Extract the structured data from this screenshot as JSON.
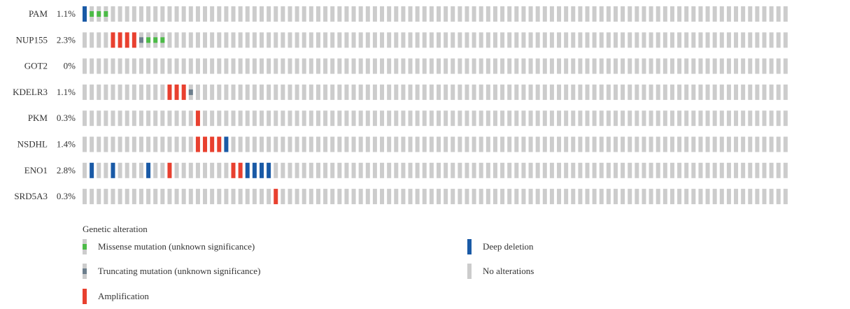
{
  "chart_data": {
    "type": "oncoprint",
    "n_samples": 100,
    "colors": {
      "background": "#cccccc",
      "missense": "#4cbb47",
      "truncating": "#6c7e8c",
      "amplification": "#e8402f",
      "deep_deletion": "#1a5aa6"
    },
    "genes": [
      {
        "gene": "PAM",
        "pct": "1.1%",
        "alterations": [
          {
            "i": 0,
            "type": "deep_deletion"
          },
          {
            "i": 1,
            "type": "missense"
          },
          {
            "i": 2,
            "type": "missense"
          },
          {
            "i": 3,
            "type": "missense"
          }
        ]
      },
      {
        "gene": "NUP155",
        "pct": "2.3%",
        "alterations": [
          {
            "i": 4,
            "type": "amplification"
          },
          {
            "i": 5,
            "type": "amplification"
          },
          {
            "i": 6,
            "type": "amplification"
          },
          {
            "i": 7,
            "type": "amplification"
          },
          {
            "i": 8,
            "type": "truncating"
          },
          {
            "i": 9,
            "type": "missense"
          },
          {
            "i": 10,
            "type": "missense"
          },
          {
            "i": 11,
            "type": "missense"
          }
        ]
      },
      {
        "gene": "GOT2",
        "pct": "0%",
        "alterations": []
      },
      {
        "gene": "KDELR3",
        "pct": "1.1%",
        "alterations": [
          {
            "i": 12,
            "type": "amplification"
          },
          {
            "i": 13,
            "type": "amplification"
          },
          {
            "i": 14,
            "type": "amplification"
          },
          {
            "i": 15,
            "type": "truncating"
          }
        ]
      },
      {
        "gene": "PKM",
        "pct": "0.3%",
        "alterations": [
          {
            "i": 16,
            "type": "amplification"
          }
        ]
      },
      {
        "gene": "NSDHL",
        "pct": "1.4%",
        "alterations": [
          {
            "i": 16,
            "type": "amplification"
          },
          {
            "i": 17,
            "type": "amplification"
          },
          {
            "i": 18,
            "type": "amplification"
          },
          {
            "i": 19,
            "type": "amplification"
          },
          {
            "i": 20,
            "type": "deep_deletion"
          }
        ]
      },
      {
        "gene": "ENO1",
        "pct": "2.8%",
        "alterations": [
          {
            "i": 1,
            "type": "deep_deletion"
          },
          {
            "i": 4,
            "type": "deep_deletion"
          },
          {
            "i": 9,
            "type": "deep_deletion"
          },
          {
            "i": 12,
            "type": "amplification"
          },
          {
            "i": 21,
            "type": "amplification"
          },
          {
            "i": 22,
            "type": "amplification"
          },
          {
            "i": 23,
            "type": "deep_deletion"
          },
          {
            "i": 24,
            "type": "deep_deletion"
          },
          {
            "i": 25,
            "type": "deep_deletion"
          },
          {
            "i": 26,
            "type": "deep_deletion"
          }
        ]
      },
      {
        "gene": "SRD5A3",
        "pct": "0.3%",
        "alterations": [
          {
            "i": 27,
            "type": "amplification"
          }
        ]
      }
    ],
    "legend": {
      "title": "Genetic alteration",
      "items": [
        {
          "key": "missense",
          "label": "Missense mutation (unknown significance)"
        },
        {
          "key": "deep_deletion",
          "label": "Deep deletion"
        },
        {
          "key": "truncating",
          "label": "Truncating mutation (unknown significance)"
        },
        {
          "key": "none",
          "label": "No alterations"
        },
        {
          "key": "amplification",
          "label": "Amplification"
        }
      ]
    }
  }
}
